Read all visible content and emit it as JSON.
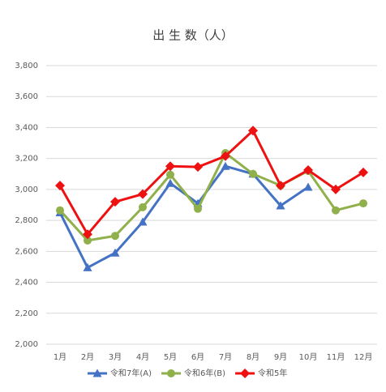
{
  "chart_data": {
    "type": "line",
    "title": "出 生 数（人）",
    "categories": [
      "1月",
      "2月",
      "3月",
      "4月",
      "5月",
      "6月",
      "7月",
      "8月",
      "9月",
      "10月",
      "11月",
      "12月"
    ],
    "series": [
      {
        "name": "令和7年(A)",
        "color": "#4472c4",
        "marker": "triangle",
        "values": [
          2850,
          2495,
          2590,
          2790,
          3040,
          2910,
          3150,
          3100,
          2895,
          3015,
          null,
          null
        ]
      },
      {
        "name": "令和6年(B)",
        "color": "#8fb04a",
        "marker": "circle",
        "values": [
          2865,
          2670,
          2700,
          2885,
          3095,
          2875,
          3235,
          3100,
          3025,
          3120,
          2865,
          2910
        ]
      },
      {
        "name": "令和5年",
        "color": "#ee1111",
        "marker": "diamond",
        "values": [
          3025,
          2710,
          2920,
          2970,
          3150,
          3145,
          3215,
          3380,
          3025,
          3125,
          3000,
          3110
        ]
      }
    ],
    "ylim": [
      2000,
      3800
    ],
    "yticks": [
      {
        "value": 2000,
        "label": "2,000"
      },
      {
        "value": 2200,
        "label": "2,200"
      },
      {
        "value": 2400,
        "label": "2,400"
      },
      {
        "value": 2600,
        "label": "2,600"
      },
      {
        "value": 2800,
        "label": "2,800"
      },
      {
        "value": 3000,
        "label": "3,000"
      },
      {
        "value": 3200,
        "label": "3,200"
      },
      {
        "value": 3400,
        "label": "3,400"
      },
      {
        "value": 3600,
        "label": "3,600"
      },
      {
        "value": 3800,
        "label": "3,800"
      }
    ],
    "grid": true,
    "legend": "bottom"
  }
}
